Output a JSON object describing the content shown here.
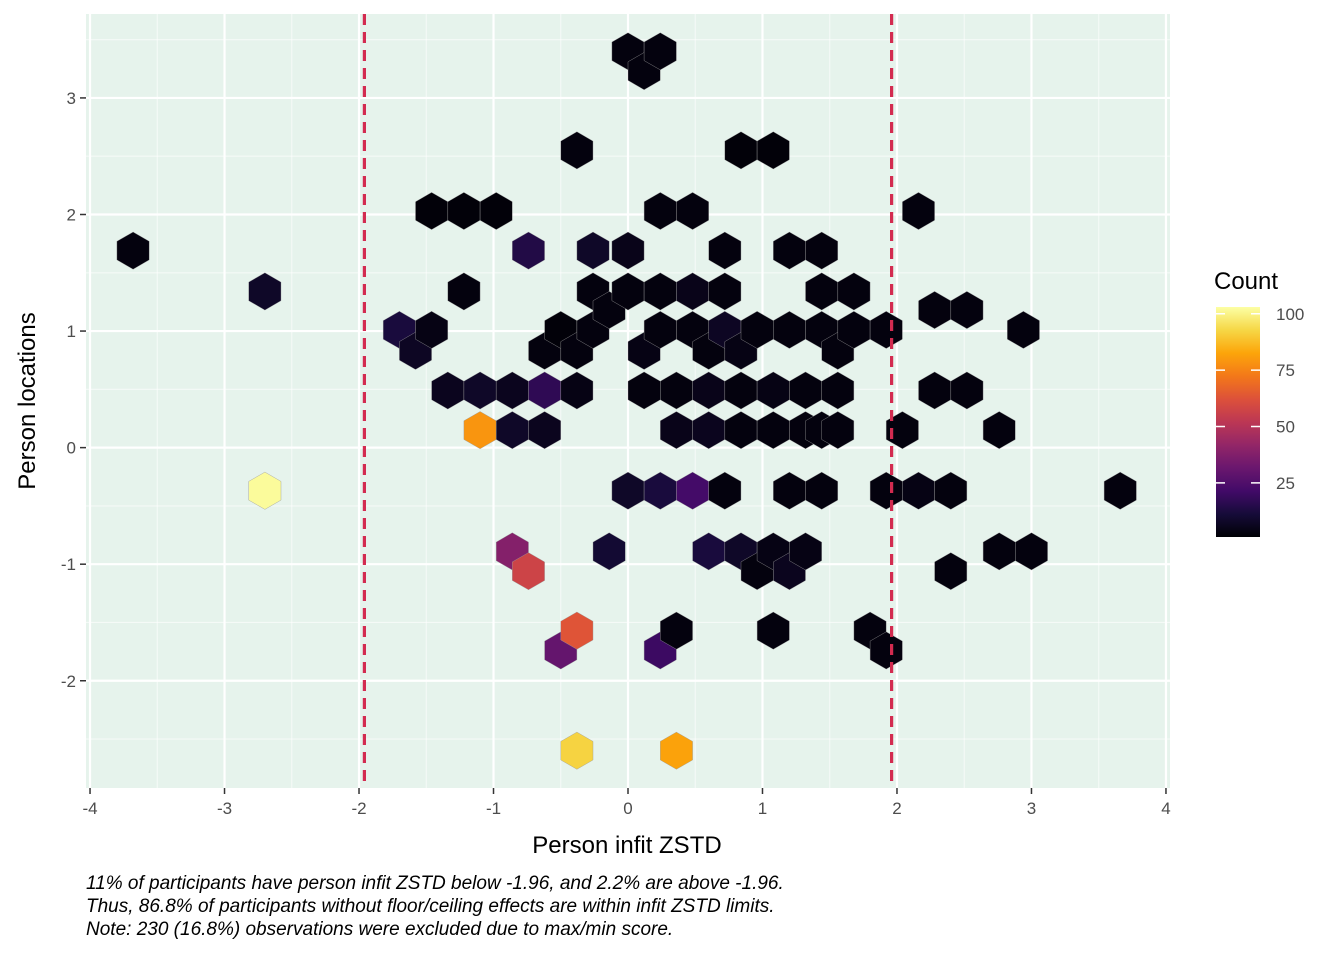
{
  "chart_data": {
    "type": "hexbin",
    "xlabel": "Person infit ZSTD",
    "ylabel": "Person locations",
    "xlim": [
      -4.03,
      4.03
    ],
    "ylim": [
      -2.92,
      3.72
    ],
    "xticks": [
      -4,
      -3,
      -2,
      -1,
      0,
      1,
      2,
      3,
      4
    ],
    "yticks": [
      -2,
      -1,
      0,
      1,
      2,
      3
    ],
    "xtick_labels": [
      "-4",
      "-3",
      "-2",
      "-1",
      "0",
      "1",
      "2",
      "3",
      "4"
    ],
    "ytick_labels": [
      "-2",
      "-1",
      "0",
      "1",
      "2",
      "3"
    ],
    "grid": true,
    "reference_lines": {
      "orientation": "vertical",
      "x": [
        -1.96,
        1.96
      ],
      "style": "dashed",
      "color": "#D32B50"
    },
    "legend": {
      "title": "Count",
      "position": "right",
      "scale_min": 1,
      "scale_max": 103,
      "ticks": [
        25,
        50,
        75,
        100
      ],
      "tick_labels": [
        "25",
        "50",
        "75",
        "100"
      ],
      "palette": "inferno"
    },
    "bins": [
      {
        "x": -3.68,
        "y": 1.69,
        "count": 3
      },
      {
        "x": -2.7,
        "y": 1.34,
        "count": 8
      },
      {
        "x": -2.7,
        "y": -0.37,
        "count": 102
      },
      {
        "x": -1.7,
        "y": 1.01,
        "count": 12
      },
      {
        "x": -1.58,
        "y": 0.83,
        "count": 7
      },
      {
        "x": -1.46,
        "y": 2.03,
        "count": 2
      },
      {
        "x": -1.46,
        "y": 1.01,
        "count": 4
      },
      {
        "x": -1.34,
        "y": 0.49,
        "count": 6
      },
      {
        "x": -1.22,
        "y": 2.03,
        "count": 2
      },
      {
        "x": -1.22,
        "y": 1.34,
        "count": 3
      },
      {
        "x": -1.1,
        "y": 0.49,
        "count": 8
      },
      {
        "x": -1.1,
        "y": 0.15,
        "count": 79
      },
      {
        "x": -0.98,
        "y": 2.03,
        "count": 2
      },
      {
        "x": -0.86,
        "y": 0.49,
        "count": 6
      },
      {
        "x": -0.86,
        "y": 0.15,
        "count": 8
      },
      {
        "x": -0.86,
        "y": -0.89,
        "count": 38
      },
      {
        "x": -0.74,
        "y": 1.69,
        "count": 14
      },
      {
        "x": -0.74,
        "y": -1.06,
        "count": 57
      },
      {
        "x": -0.62,
        "y": 0.83,
        "count": 3
      },
      {
        "x": -0.62,
        "y": 0.49,
        "count": 17
      },
      {
        "x": -0.62,
        "y": 0.15,
        "count": 6
      },
      {
        "x": -0.5,
        "y": 1.01,
        "count": 2
      },
      {
        "x": -0.5,
        "y": -1.74,
        "count": 30
      },
      {
        "x": -0.38,
        "y": 2.55,
        "count": 3
      },
      {
        "x": -0.38,
        "y": 0.83,
        "count": 3
      },
      {
        "x": -0.38,
        "y": 0.49,
        "count": 4
      },
      {
        "x": -0.38,
        "y": -1.57,
        "count": 63
      },
      {
        "x": -0.38,
        "y": -2.6,
        "count": 92
      },
      {
        "x": -0.26,
        "y": 1.69,
        "count": 8
      },
      {
        "x": -0.26,
        "y": 1.34,
        "count": 3
      },
      {
        "x": -0.26,
        "y": 1.01,
        "count": 3
      },
      {
        "x": -0.14,
        "y": 1.18,
        "count": 3
      },
      {
        "x": -0.14,
        "y": -0.89,
        "count": 10
      },
      {
        "x": 0.0,
        "y": 3.4,
        "count": 3
      },
      {
        "x": 0.0,
        "y": 1.69,
        "count": 5
      },
      {
        "x": 0.0,
        "y": 1.34,
        "count": 3
      },
      {
        "x": 0.0,
        "y": -0.37,
        "count": 8
      },
      {
        "x": 0.12,
        "y": 3.23,
        "count": 3
      },
      {
        "x": 0.12,
        "y": 0.83,
        "count": 4
      },
      {
        "x": 0.12,
        "y": 0.49,
        "count": 3
      },
      {
        "x": 0.24,
        "y": 3.4,
        "count": 3
      },
      {
        "x": 0.24,
        "y": 2.03,
        "count": 3
      },
      {
        "x": 0.24,
        "y": 1.34,
        "count": 3
      },
      {
        "x": 0.24,
        "y": 1.01,
        "count": 3
      },
      {
        "x": 0.24,
        "y": -0.37,
        "count": 12
      },
      {
        "x": 0.24,
        "y": -1.74,
        "count": 20
      },
      {
        "x": 0.36,
        "y": 0.49,
        "count": 3
      },
      {
        "x": 0.36,
        "y": 0.15,
        "count": 5
      },
      {
        "x": 0.36,
        "y": -1.57,
        "count": 3
      },
      {
        "x": 0.36,
        "y": -2.6,
        "count": 82
      },
      {
        "x": 0.48,
        "y": 2.03,
        "count": 3
      },
      {
        "x": 0.48,
        "y": 1.34,
        "count": 5
      },
      {
        "x": 0.48,
        "y": 1.01,
        "count": 3
      },
      {
        "x": 0.48,
        "y": -0.37,
        "count": 22
      },
      {
        "x": 0.6,
        "y": 0.83,
        "count": 3
      },
      {
        "x": 0.6,
        "y": 0.49,
        "count": 5
      },
      {
        "x": 0.6,
        "y": 0.15,
        "count": 6
      },
      {
        "x": 0.6,
        "y": -0.89,
        "count": 12
      },
      {
        "x": 0.72,
        "y": 1.69,
        "count": 3
      },
      {
        "x": 0.72,
        "y": 1.34,
        "count": 3
      },
      {
        "x": 0.72,
        "y": 1.01,
        "count": 7
      },
      {
        "x": 0.72,
        "y": -0.37,
        "count": 3
      },
      {
        "x": 0.84,
        "y": 2.55,
        "count": 2
      },
      {
        "x": 0.84,
        "y": 0.83,
        "count": 4
      },
      {
        "x": 0.84,
        "y": 0.49,
        "count": 3
      },
      {
        "x": 0.84,
        "y": 0.15,
        "count": 3
      },
      {
        "x": 0.84,
        "y": -0.89,
        "count": 8
      },
      {
        "x": 0.96,
        "y": 1.01,
        "count": 3
      },
      {
        "x": 0.96,
        "y": -1.06,
        "count": 3
      },
      {
        "x": 1.08,
        "y": 2.55,
        "count": 2
      },
      {
        "x": 1.08,
        "y": 0.49,
        "count": 4
      },
      {
        "x": 1.08,
        "y": 0.15,
        "count": 3
      },
      {
        "x": 1.08,
        "y": -0.89,
        "count": 4
      },
      {
        "x": 1.08,
        "y": -1.57,
        "count": 3
      },
      {
        "x": 1.2,
        "y": 1.69,
        "count": 3
      },
      {
        "x": 1.2,
        "y": 1.01,
        "count": 3
      },
      {
        "x": 1.2,
        "y": -0.37,
        "count": 3
      },
      {
        "x": 1.2,
        "y": -1.06,
        "count": 6
      },
      {
        "x": 1.32,
        "y": 0.49,
        "count": 3
      },
      {
        "x": 1.32,
        "y": 0.15,
        "count": 3
      },
      {
        "x": 1.32,
        "y": -0.89,
        "count": 4
      },
      {
        "x": 1.44,
        "y": 1.69,
        "count": 3
      },
      {
        "x": 1.44,
        "y": 1.34,
        "count": 3
      },
      {
        "x": 1.44,
        "y": 1.01,
        "count": 3
      },
      {
        "x": 1.44,
        "y": 0.15,
        "count": 3
      },
      {
        "x": 1.44,
        "y": -0.37,
        "count": 3
      },
      {
        "x": 1.56,
        "y": 0.83,
        "count": 3
      },
      {
        "x": 1.56,
        "y": 0.49,
        "count": 3
      },
      {
        "x": 1.56,
        "y": 0.15,
        "count": 3
      },
      {
        "x": 1.68,
        "y": 1.34,
        "count": 3
      },
      {
        "x": 1.68,
        "y": 1.01,
        "count": 3
      },
      {
        "x": 1.8,
        "y": -1.57,
        "count": 3
      },
      {
        "x": 1.92,
        "y": 1.01,
        "count": 3
      },
      {
        "x": 1.92,
        "y": -0.37,
        "count": 3
      },
      {
        "x": 1.92,
        "y": -1.74,
        "count": 3
      },
      {
        "x": 2.04,
        "y": 0.15,
        "count": 3
      },
      {
        "x": 2.16,
        "y": 2.03,
        "count": 3
      },
      {
        "x": 2.16,
        "y": -0.37,
        "count": 4
      },
      {
        "x": 2.28,
        "y": 1.18,
        "count": 3
      },
      {
        "x": 2.28,
        "y": 0.49,
        "count": 3
      },
      {
        "x": 2.4,
        "y": -0.37,
        "count": 3
      },
      {
        "x": 2.4,
        "y": -1.06,
        "count": 3
      },
      {
        "x": 2.52,
        "y": 1.18,
        "count": 3
      },
      {
        "x": 2.52,
        "y": 0.49,
        "count": 3
      },
      {
        "x": 2.76,
        "y": 0.15,
        "count": 3
      },
      {
        "x": 2.76,
        "y": -0.89,
        "count": 3
      },
      {
        "x": 2.94,
        "y": 1.01,
        "count": 3
      },
      {
        "x": 3.0,
        "y": -0.89,
        "count": 3
      },
      {
        "x": 3.66,
        "y": -0.37,
        "count": 3
      }
    ]
  },
  "caption": {
    "line1": "11% of participants have person infit ZSTD below -1.96, and 2.2% are above -1.96.",
    "line2": "Thus, 86.8% of participants without floor/ceiling effects are within infit ZSTD limits.",
    "line3": "Note: 230 (16.8%) observations were excluded due to max/min score."
  },
  "colors": {
    "panel_background": "#E6F3EC",
    "grid_major": "#FFFFFF",
    "reference_line": "#D32B50",
    "text": "#000000",
    "tick_text": "#4D4D4D"
  }
}
